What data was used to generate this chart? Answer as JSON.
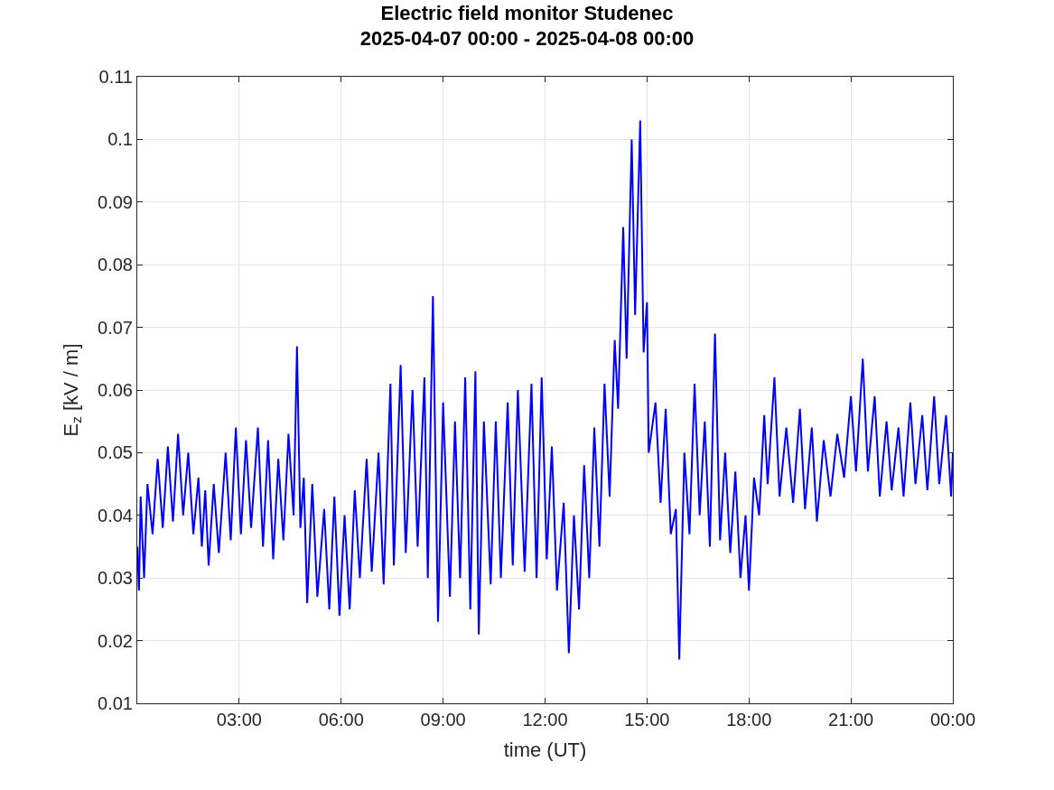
{
  "chart_data": {
    "type": "line",
    "title": "Electric field monitor Studenec\n2025-04-07 00:00 - 2025-04-08 00:00",
    "xlabel": "time (UT)",
    "ylabel": "E$_{z}$ [kV / m]",
    "xlim": [
      0,
      24
    ],
    "xticks": [
      {
        "value": 3,
        "label": "03:00"
      },
      {
        "value": 6,
        "label": "06:00"
      },
      {
        "value": 9,
        "label": "09:00"
      },
      {
        "value": 12,
        "label": "12:00"
      },
      {
        "value": 15,
        "label": "15:00"
      },
      {
        "value": 18,
        "label": "18:00"
      },
      {
        "value": 21,
        "label": "21:00"
      },
      {
        "value": 24,
        "label": "00:00"
      }
    ],
    "ylim": [
      0.01,
      0.11
    ],
    "yticks": [
      0.01,
      0.02,
      0.03,
      0.04,
      0.05,
      0.06,
      0.07,
      0.08,
      0.09,
      0.1,
      0.11
    ],
    "grid": true,
    "marker": "none",
    "line_style": "solid",
    "x": [
      0.0,
      0.05,
      0.1,
      0.2,
      0.3,
      0.45,
      0.6,
      0.75,
      0.9,
      1.05,
      1.2,
      1.35,
      1.5,
      1.65,
      1.8,
      1.9,
      2.0,
      2.1,
      2.25,
      2.4,
      2.6,
      2.75,
      2.9,
      3.05,
      3.2,
      3.35,
      3.55,
      3.7,
      3.85,
      4.0,
      4.15,
      4.3,
      4.45,
      4.6,
      4.7,
      4.8,
      4.9,
      5.0,
      5.15,
      5.3,
      5.5,
      5.65,
      5.8,
      5.95,
      6.1,
      6.25,
      6.4,
      6.55,
      6.75,
      6.9,
      7.1,
      7.25,
      7.45,
      7.55,
      7.75,
      7.9,
      8.1,
      8.25,
      8.45,
      8.55,
      8.7,
      8.85,
      9.0,
      9.2,
      9.35,
      9.5,
      9.65,
      9.8,
      9.95,
      10.05,
      10.2,
      10.4,
      10.55,
      10.7,
      10.9,
      11.05,
      11.2,
      11.4,
      11.6,
      11.75,
      11.9,
      12.05,
      12.2,
      12.35,
      12.55,
      12.7,
      12.85,
      13.0,
      13.15,
      13.3,
      13.45,
      13.6,
      13.75,
      13.9,
      14.05,
      14.15,
      14.3,
      14.4,
      14.55,
      14.65,
      14.8,
      14.9,
      15.0,
      15.05,
      15.25,
      15.4,
      15.55,
      15.7,
      15.85,
      15.95,
      16.1,
      16.25,
      16.4,
      16.55,
      16.7,
      16.85,
      17.0,
      17.15,
      17.3,
      17.45,
      17.6,
      17.75,
      17.9,
      18.0,
      18.15,
      18.3,
      18.45,
      18.55,
      18.75,
      18.9,
      19.1,
      19.3,
      19.5,
      19.65,
      19.85,
      20.0,
      20.2,
      20.4,
      20.6,
      20.8,
      21.0,
      21.15,
      21.35,
      21.5,
      21.7,
      21.85,
      22.05,
      22.2,
      22.4,
      22.55,
      22.75,
      22.9,
      23.1,
      23.25,
      23.45,
      23.6,
      23.8,
      23.95,
      24.0
    ],
    "series": [
      {
        "color": "#0000ff",
        "values": [
          0.035,
          0.028,
          0.043,
          0.03,
          0.045,
          0.037,
          0.049,
          0.038,
          0.051,
          0.039,
          0.053,
          0.04,
          0.05,
          0.037,
          0.046,
          0.035,
          0.044,
          0.032,
          0.045,
          0.034,
          0.05,
          0.036,
          0.054,
          0.037,
          0.052,
          0.038,
          0.054,
          0.035,
          0.052,
          0.033,
          0.049,
          0.036,
          0.053,
          0.04,
          0.067,
          0.038,
          0.046,
          0.026,
          0.045,
          0.027,
          0.041,
          0.025,
          0.043,
          0.024,
          0.04,
          0.025,
          0.044,
          0.03,
          0.049,
          0.031,
          0.05,
          0.029,
          0.061,
          0.032,
          0.064,
          0.034,
          0.06,
          0.035,
          0.062,
          0.03,
          0.075,
          0.023,
          0.058,
          0.027,
          0.055,
          0.03,
          0.062,
          0.025,
          0.063,
          0.021,
          0.055,
          0.029,
          0.055,
          0.03,
          0.058,
          0.032,
          0.06,
          0.031,
          0.061,
          0.03,
          0.062,
          0.033,
          0.051,
          0.028,
          0.042,
          0.018,
          0.04,
          0.025,
          0.048,
          0.03,
          0.054,
          0.035,
          0.061,
          0.043,
          0.068,
          0.057,
          0.086,
          0.065,
          0.1,
          0.072,
          0.103,
          0.066,
          0.074,
          0.05,
          0.058,
          0.042,
          0.057,
          0.037,
          0.041,
          0.017,
          0.05,
          0.037,
          0.061,
          0.04,
          0.055,
          0.035,
          0.069,
          0.036,
          0.05,
          0.034,
          0.047,
          0.03,
          0.04,
          0.028,
          0.046,
          0.04,
          0.056,
          0.045,
          0.062,
          0.043,
          0.054,
          0.042,
          0.057,
          0.041,
          0.054,
          0.039,
          0.052,
          0.043,
          0.053,
          0.046,
          0.059,
          0.047,
          0.065,
          0.047,
          0.059,
          0.043,
          0.055,
          0.044,
          0.054,
          0.043,
          0.058,
          0.045,
          0.056,
          0.044,
          0.059,
          0.045,
          0.056,
          0.043,
          0.05
        ]
      }
    ]
  }
}
